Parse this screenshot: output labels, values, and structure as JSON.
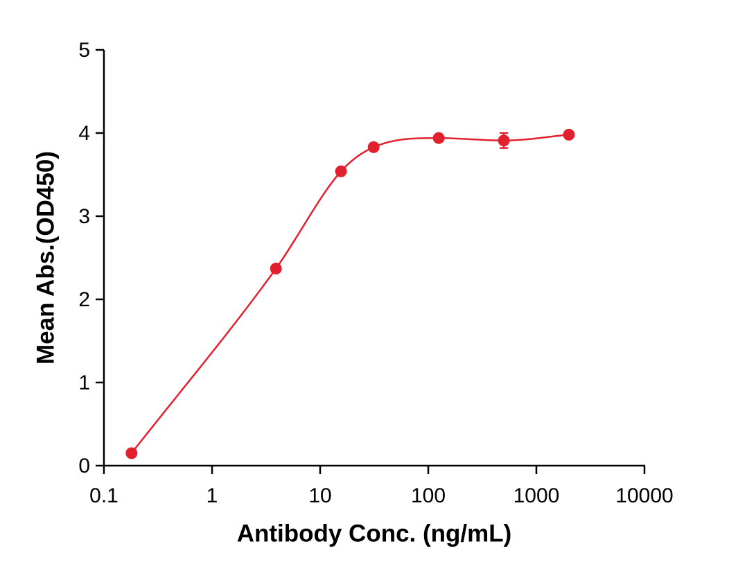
{
  "chart_data": {
    "type": "scatter",
    "xlabel": "Antibody Conc. (ng/mL)",
    "ylabel": "Mean Abs.(OD450)",
    "xscale": "log",
    "series": [
      {
        "color": "#e3202e",
        "x": [
          0.18,
          3.9,
          15.6,
          31.25,
          125,
          500,
          2000
        ],
        "values": [
          0.15,
          2.37,
          3.54,
          3.83,
          3.94,
          3.91,
          3.98
        ],
        "errors": [
          null,
          null,
          null,
          null,
          null,
          0.09,
          null
        ]
      }
    ],
    "xlim": [
      0.1,
      10000
    ],
    "xticks": [
      0.1,
      1,
      10,
      100,
      1000,
      10000
    ],
    "ylim": [
      0,
      5
    ],
    "yticks": [
      0,
      1,
      2,
      3,
      4,
      5
    ],
    "grid": false
  }
}
